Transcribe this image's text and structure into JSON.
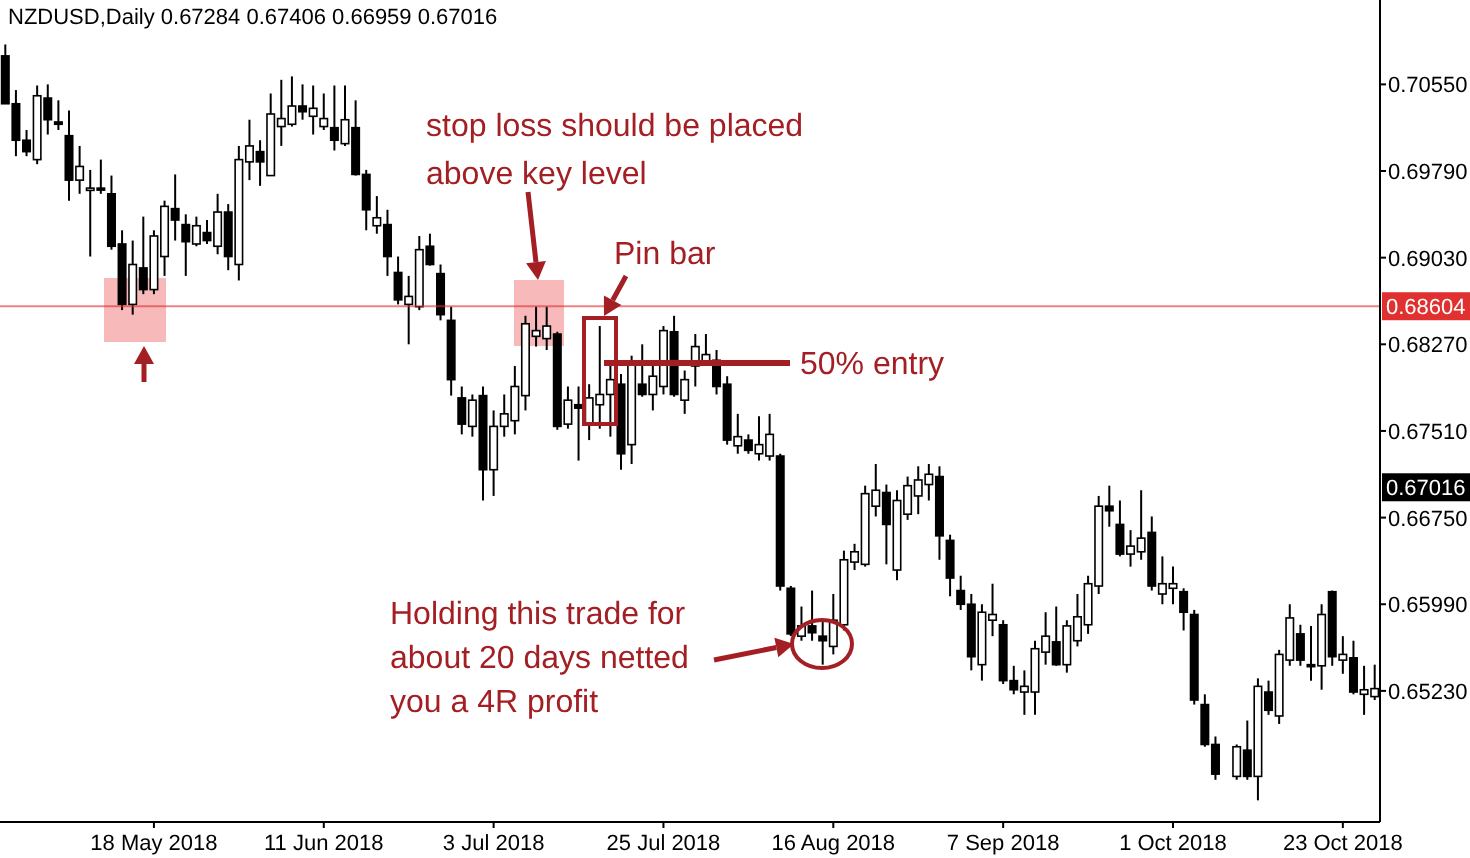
{
  "chart_data": {
    "type": "candlestick",
    "title": "NZDUSD,Daily  0.67284 0.67406 0.66959 0.67016",
    "categories": [
      null,
      null,
      null,
      null,
      null,
      null,
      null,
      null,
      null,
      null,
      null,
      null,
      null,
      null,
      "18 May 2018",
      null,
      null,
      null,
      null,
      null,
      null,
      null,
      null,
      null,
      null,
      null,
      null,
      null,
      null,
      null,
      "11 Jun 2018",
      null,
      null,
      null,
      null,
      null,
      null,
      null,
      null,
      null,
      null,
      null,
      null,
      null,
      null,
      null,
      "3 Jul 2018",
      null,
      null,
      null,
      null,
      null,
      null,
      null,
      null,
      null,
      null,
      null,
      null,
      null,
      null,
      null,
      "25 Jul 2018",
      null,
      null,
      null,
      null,
      null,
      null,
      null,
      null,
      null,
      null,
      null,
      null,
      null,
      null,
      null,
      "16 Aug 2018",
      null,
      null,
      null,
      null,
      null,
      null,
      null,
      null,
      null,
      null,
      null,
      null,
      null,
      null,
      null,
      "7 Sep 2018",
      null,
      null,
      null,
      null,
      null,
      null,
      null,
      null,
      null,
      null,
      null,
      null,
      null,
      null,
      null,
      "1 Oct 2018",
      null,
      null,
      null,
      null,
      null,
      null,
      null,
      null,
      null,
      null,
      null,
      null,
      null,
      null,
      null,
      "23 Oct 2018",
      null,
      null,
      null
    ],
    "ohlc": [
      [
        0.708,
        0.709,
        0.7038,
        0.7038
      ],
      [
        0.7038,
        0.705,
        0.6992,
        0.7006
      ],
      [
        0.7006,
        0.7015,
        0.6992,
        0.6996
      ],
      [
        0.6989,
        0.7054,
        0.6985,
        0.7045
      ],
      [
        0.7043,
        0.7055,
        0.7011,
        0.7024
      ],
      [
        0.7022,
        0.7041,
        0.7015,
        0.702
      ],
      [
        0.701,
        0.7032,
        0.6953,
        0.6971
      ],
      [
        0.6971,
        0.7001,
        0.6959,
        0.6983
      ],
      [
        0.6962,
        0.698,
        0.6904,
        0.6964
      ],
      [
        0.6964,
        0.6989,
        0.6959,
        0.6963
      ],
      [
        0.6959,
        0.6975,
        0.691,
        0.6913
      ],
      [
        0.6915,
        0.6927,
        0.6857,
        0.6862
      ],
      [
        0.6862,
        0.6918,
        0.6853,
        0.6897
      ],
      [
        0.6894,
        0.6939,
        0.6871,
        0.6875
      ],
      [
        0.6875,
        0.6927,
        0.6871,
        0.6922
      ],
      [
        0.6904,
        0.6953,
        0.6887,
        0.6948
      ],
      [
        0.6946,
        0.6976,
        0.6918,
        0.6936
      ],
      [
        0.6932,
        0.6941,
        0.6887,
        0.6917
      ],
      [
        0.6915,
        0.6939,
        0.6913,
        0.6931
      ],
      [
        0.6925,
        0.6936,
        0.6915,
        0.6918
      ],
      [
        0.6913,
        0.6959,
        0.6906,
        0.6943
      ],
      [
        0.6943,
        0.695,
        0.6892,
        0.6904
      ],
      [
        0.6897,
        0.7001,
        0.6883,
        0.6989
      ],
      [
        0.6987,
        0.7024,
        0.6971,
        0.7001
      ],
      [
        0.6996,
        0.7006,
        0.6966,
        0.6987
      ],
      [
        0.6975,
        0.7047,
        0.6975,
        0.7029
      ],
      [
        0.7018,
        0.7059,
        0.7001,
        0.7025
      ],
      [
        0.702,
        0.7062,
        0.7018,
        0.7036
      ],
      [
        0.7036,
        0.7055,
        0.7024,
        0.7031
      ],
      [
        0.7027,
        0.7054,
        0.7011,
        0.7034
      ],
      [
        0.7018,
        0.7047,
        0.7015,
        0.7025
      ],
      [
        0.7017,
        0.7054,
        0.6997,
        0.7006
      ],
      [
        0.7003,
        0.7054,
        0.7001,
        0.7024
      ],
      [
        0.7017,
        0.7041,
        0.6975,
        0.6976
      ],
      [
        0.6976,
        0.698,
        0.6927,
        0.6945
      ],
      [
        0.6931,
        0.6957,
        0.6924,
        0.6938
      ],
      [
        0.6932,
        0.6945,
        0.6887,
        0.6904
      ],
      [
        0.689,
        0.6904,
        0.6862,
        0.6866
      ],
      [
        0.6862,
        0.6887,
        0.6827,
        0.6869
      ],
      [
        0.686,
        0.6922,
        0.6857,
        0.691
      ],
      [
        0.6913,
        0.6924,
        0.6896,
        0.6897
      ],
      [
        0.6889,
        0.6897,
        0.6848,
        0.6853
      ],
      [
        0.6848,
        0.686,
        0.6782,
        0.6796
      ],
      [
        0.678,
        0.679,
        0.6748,
        0.6757
      ],
      [
        0.6755,
        0.6783,
        0.6746,
        0.6778
      ],
      [
        0.6782,
        0.679,
        0.669,
        0.6717
      ],
      [
        0.6717,
        0.6769,
        0.6694,
        0.6755
      ],
      [
        0.6755,
        0.6783,
        0.6746,
        0.6766
      ],
      [
        0.676,
        0.6808,
        0.6748,
        0.679
      ],
      [
        0.6782,
        0.6852,
        0.6769,
        0.6845
      ],
      [
        0.6834,
        0.686,
        0.6825,
        0.6839
      ],
      [
        0.6832,
        0.686,
        0.6822,
        0.6843
      ],
      [
        0.6836,
        0.6838,
        0.6752,
        0.6755
      ],
      [
        0.6757,
        0.679,
        0.6753,
        0.6778
      ],
      [
        0.6774,
        0.679,
        0.6725,
        0.6771
      ],
      [
        0.6757,
        0.6792,
        0.6743,
        0.678
      ],
      [
        0.6774,
        0.6843,
        0.6753,
        0.6783
      ],
      [
        0.6783,
        0.6808,
        0.6746,
        0.6796
      ],
      [
        0.6792,
        0.6801,
        0.6717,
        0.6731
      ],
      [
        0.6739,
        0.6817,
        0.6722,
        0.681
      ],
      [
        0.6792,
        0.6827,
        0.6781,
        0.6783
      ],
      [
        0.6783,
        0.681,
        0.6769,
        0.6799
      ],
      [
        0.679,
        0.6843,
        0.6783,
        0.6839
      ],
      [
        0.6838,
        0.6852,
        0.6781,
        0.6783
      ],
      [
        0.6778,
        0.6804,
        0.6766,
        0.6796
      ],
      [
        0.6808,
        0.6836,
        0.679,
        0.6825
      ],
      [
        0.681,
        0.6836,
        0.6808,
        0.6818
      ],
      [
        0.6813,
        0.6822,
        0.6783,
        0.679
      ],
      [
        0.6792,
        0.6799,
        0.6739,
        0.6743
      ],
      [
        0.6738,
        0.6766,
        0.6731,
        0.6746
      ],
      [
        0.6743,
        0.6748,
        0.6731,
        0.6734
      ],
      [
        0.6731,
        0.6764,
        0.6725,
        0.6739
      ],
      [
        0.6729,
        0.6766,
        0.6725,
        0.6748
      ],
      [
        0.6729,
        0.6731,
        0.6611,
        0.6615
      ],
      [
        0.6613,
        0.6615,
        0.6571,
        0.6573
      ],
      [
        0.6571,
        0.6597,
        0.6567,
        0.658
      ],
      [
        0.658,
        0.6611,
        0.6567,
        0.6574
      ],
      [
        0.6571,
        0.6585,
        0.6546,
        0.6567
      ],
      [
        0.6562,
        0.6608,
        0.6555,
        0.6585
      ],
      [
        0.6581,
        0.6646,
        0.6576,
        0.6638
      ],
      [
        0.6636,
        0.6652,
        0.6629,
        0.6645
      ],
      [
        0.6634,
        0.6703,
        0.6632,
        0.6696
      ],
      [
        0.6685,
        0.6722,
        0.6676,
        0.6699
      ],
      [
        0.6697,
        0.6704,
        0.6634,
        0.6669
      ],
      [
        0.6629,
        0.6699,
        0.662,
        0.669
      ],
      [
        0.6678,
        0.6711,
        0.6673,
        0.6703
      ],
      [
        0.6694,
        0.672,
        0.6678,
        0.6708
      ],
      [
        0.6704,
        0.6722,
        0.669,
        0.6713
      ],
      [
        0.6711,
        0.672,
        0.6638,
        0.6659
      ],
      [
        0.6655,
        0.666,
        0.6606,
        0.6622
      ],
      [
        0.6611,
        0.6624,
        0.6594,
        0.6599
      ],
      [
        0.6599,
        0.6608,
        0.6541,
        0.6553
      ],
      [
        0.6546,
        0.6599,
        0.6532,
        0.6592
      ],
      [
        0.6585,
        0.6617,
        0.6571,
        0.659
      ],
      [
        0.6581,
        0.6585,
        0.6529,
        0.6532
      ],
      [
        0.6532,
        0.6545,
        0.652,
        0.6524
      ],
      [
        0.6522,
        0.6541,
        0.6502,
        0.6527
      ],
      [
        0.6522,
        0.6567,
        0.6502,
        0.656
      ],
      [
        0.6557,
        0.6592,
        0.6546,
        0.6571
      ],
      [
        0.6566,
        0.6597,
        0.6545,
        0.6546
      ],
      [
        0.6546,
        0.6585,
        0.6539,
        0.658
      ],
      [
        0.6567,
        0.6608,
        0.6562,
        0.6588
      ],
      [
        0.6581,
        0.6624,
        0.6573,
        0.6617
      ],
      [
        0.6615,
        0.6694,
        0.6608,
        0.6685
      ],
      [
        0.6685,
        0.6703,
        0.6667,
        0.6681
      ],
      [
        0.6669,
        0.669,
        0.6641,
        0.6643
      ],
      [
        0.6643,
        0.6664,
        0.6632,
        0.665
      ],
      [
        0.6645,
        0.6699,
        0.6638,
        0.6657
      ],
      [
        0.6662,
        0.6676,
        0.6611,
        0.6615
      ],
      [
        0.6608,
        0.6641,
        0.6599,
        0.6617
      ],
      [
        0.6613,
        0.6632,
        0.6599,
        0.6617
      ],
      [
        0.661,
        0.6613,
        0.6576,
        0.6592
      ],
      [
        0.659,
        0.6594,
        0.6511,
        0.6515
      ],
      [
        0.6511,
        0.652,
        0.6474,
        0.6476
      ],
      [
        0.6476,
        0.6483,
        0.6445,
        0.645
      ],
      null,
      [
        0.6448,
        0.6476,
        0.6445,
        0.6474
      ],
      [
        0.6471,
        0.6497,
        0.6445,
        0.6448
      ],
      [
        0.6448,
        0.6534,
        0.6427,
        0.6527
      ],
      [
        0.6522,
        0.6532,
        0.6502,
        0.6506
      ],
      [
        0.6501,
        0.6559,
        0.6494,
        0.6555
      ],
      [
        0.655,
        0.6599,
        0.6545,
        0.6587
      ],
      [
        0.6573,
        0.6581,
        0.6545,
        0.655
      ],
      [
        0.6546,
        0.658,
        0.6532,
        0.6545
      ],
      [
        0.6545,
        0.6599,
        0.6524,
        0.659
      ],
      [
        0.661,
        0.6611,
        0.6545,
        0.6553
      ],
      [
        0.655,
        0.6571,
        0.6538,
        0.6555
      ],
      [
        0.6552,
        0.6567,
        0.652,
        0.6522
      ],
      [
        0.652,
        0.6545,
        0.6502,
        0.6524
      ],
      [
        0.6518,
        0.6546,
        0.6515,
        0.6525
      ]
    ],
    "ylim": [
      0.6408,
      0.7129
    ],
    "yticks": [
      {
        "value": 0.7055,
        "label": "0.70550"
      },
      {
        "value": 0.6979,
        "label": "0.69790"
      },
      {
        "value": 0.6903,
        "label": "0.69030"
      },
      {
        "value": 0.6827,
        "label": "0.68270"
      },
      {
        "value": 0.6751,
        "label": "0.67510"
      },
      {
        "value": 0.6675,
        "label": "0.66750"
      },
      {
        "value": 0.6599,
        "label": "0.65990"
      },
      {
        "value": 0.6523,
        "label": "0.65230"
      }
    ],
    "ref_lines": [
      {
        "axis": "y",
        "value": 0.68604,
        "label": "0.68604",
        "color": "#e03030"
      }
    ],
    "annotations": [
      "stop loss should be placed above key level",
      "Pin bar",
      "50% entry",
      "Holding this trade for about 20 days netted you a 4R profit",
      {
        "text": "0.67016",
        "y": 0.67016
      }
    ]
  }
}
